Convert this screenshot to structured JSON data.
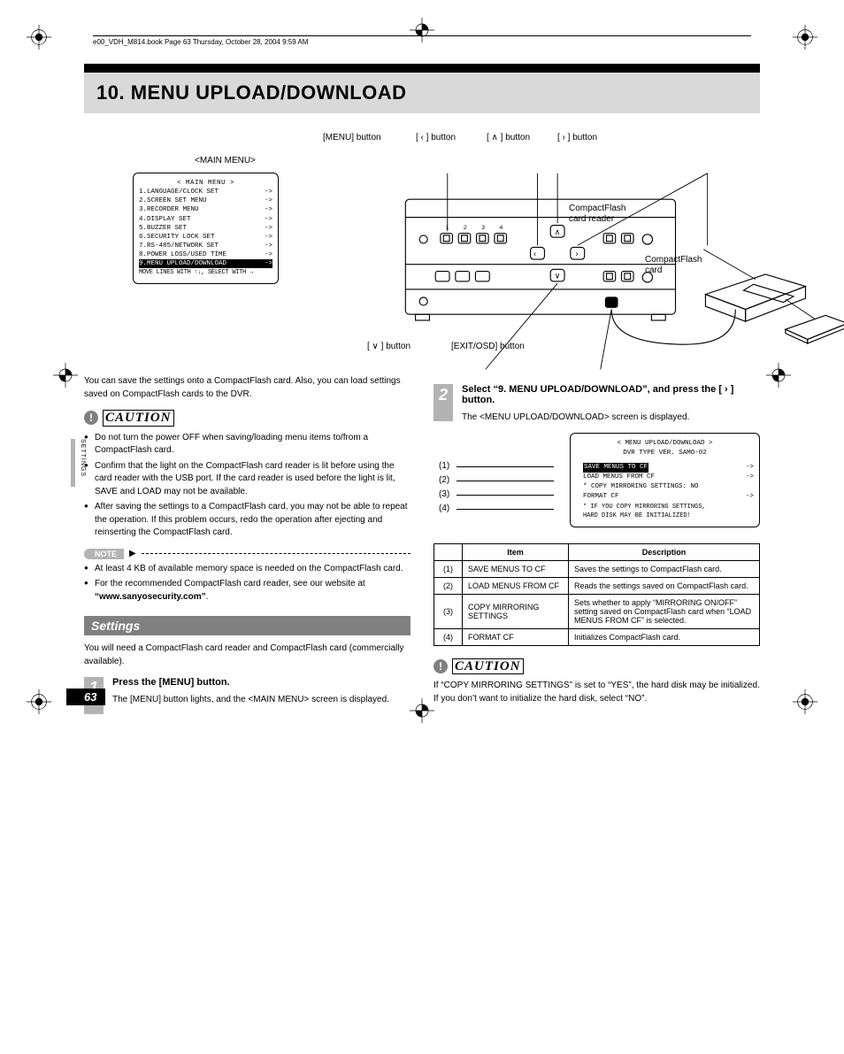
{
  "header_line": "e00_VDH_M814.book  Page 63  Thursday, October 28, 2004  9:59 AM",
  "title": "10. MENU UPLOAD/DOWNLOAD",
  "side_tab_text": "SETTINGS",
  "page_num": "63",
  "diagram_labels": {
    "main_menu": "<MAIN MENU>",
    "menu_btn": "[MENU] button",
    "left_btn": "[ ‹ ] button",
    "up_btn": "[ ∧ ] button",
    "right_btn": "[ › ] button",
    "down_btn": "[ ∨ ] button",
    "exit_btn": "[EXIT/OSD] button",
    "cf_reader": "CompactFlash card reader",
    "cf_card": "CompactFlash card"
  },
  "main_menu_box": {
    "title": "< MAIN MENU >",
    "items": [
      "1.LANGUAGE/CLOCK SET",
      "2.SCREEN SET MENU",
      "3.RECORDER MENU",
      "4.DISPLAY SET",
      "5.BUZZER SET",
      "6.SECURITY LOCK SET",
      "7.RS-485/NETWORK SET",
      "8.POWER LOSS/USED TIME"
    ],
    "highlight": "9.MENU UPLOAD/DOWNLOAD",
    "arrow": "->",
    "footer": "MOVE LINES WITH ↑↓, SELECT WITH →"
  },
  "left_col": {
    "intro": "You can save the settings onto a CompactFlash card. Also, you can load settings saved on CompactFlash cards to the DVR.",
    "caution_label": "CAUTION",
    "caution_items": [
      "Do not turn the power OFF when saving/loading menu items to/from a CompactFlash card.",
      "Confirm that the light on the CompactFlash card reader is lit before using the card reader with the USB port. If the card reader is used before the light is lit, SAVE and LOAD may not be available.",
      "After saving the settings to a CompactFlash card, you may not be able to repeat the operation. If this problem occurs, redo the operation after ejecting and reinserting the CompactFlash card."
    ],
    "note_label": "NOTE",
    "note_items": [
      "At least 4 KB of available memory space is needed on the CompactFlash card.",
      "For the recommended CompactFlash card reader, see our website at “www.sanyosecurity.com”."
    ],
    "note_bold": "“www.sanyosecurity.com”",
    "settings_heading": "Settings",
    "settings_text": "You will need a CompactFlash card reader and CompactFlash card (commercially available).",
    "step1": {
      "num": "1",
      "title": "Press the [MENU] button.",
      "text": "The [MENU] button lights, and the <MAIN MENU> screen is displayed."
    }
  },
  "right_col": {
    "step2": {
      "num": "2",
      "title": "Select “9. MENU UPLOAD/DOWNLOAD”, and press the [ › ] button.",
      "text": "The <MENU UPLOAD/DOWNLOAD> screen is displayed."
    },
    "screen": {
      "title": "< MENU UPLOAD/DOWNLOAD >",
      "sub": "DVR TYPE VER.   SAMO-02",
      "rows": [
        {
          "t": "SAVE MENUS TO CF",
          "a": "->",
          "hl": true
        },
        {
          "t": "LOAD MENUS FROM CF",
          "a": "->"
        },
        {
          "t": "* COPY MIRRORING SETTINGS: NO",
          "a": ""
        },
        {
          "t": "FORMAT CF",
          "a": "->"
        }
      ],
      "note1": "* IF YOU COPY MIRRORING SETTINGS,",
      "note2": "  HARD DISK MAY BE INITIALIZED!"
    },
    "callouts": [
      "(1)",
      "(2)",
      "(3)",
      "(4)"
    ],
    "table": {
      "headers": [
        "",
        "Item",
        "Description"
      ],
      "rows": [
        [
          "(1)",
          "SAVE MENUS TO CF",
          "Saves the settings to CompactFlash card."
        ],
        [
          "(2)",
          "LOAD MENUS FROM CF",
          "Reads the settings saved on CompactFlash card."
        ],
        [
          "(3)",
          "COPY MIRRORING SETTINGS",
          "Sets whether to apply “MIRRORING ON/OFF” setting saved on CompactFlash card when “LOAD MENUS FROM CF” is selected."
        ],
        [
          "(4)",
          "FORMAT CF",
          "Initializes CompactFlash card."
        ]
      ]
    },
    "caution2_label": "CAUTION",
    "caution2_text": "If “COPY MIRRORING SETTINGS” is set to “YES”, the hard disk may be initialized. If you don’t want to initialize the hard disk, select “NO”."
  }
}
